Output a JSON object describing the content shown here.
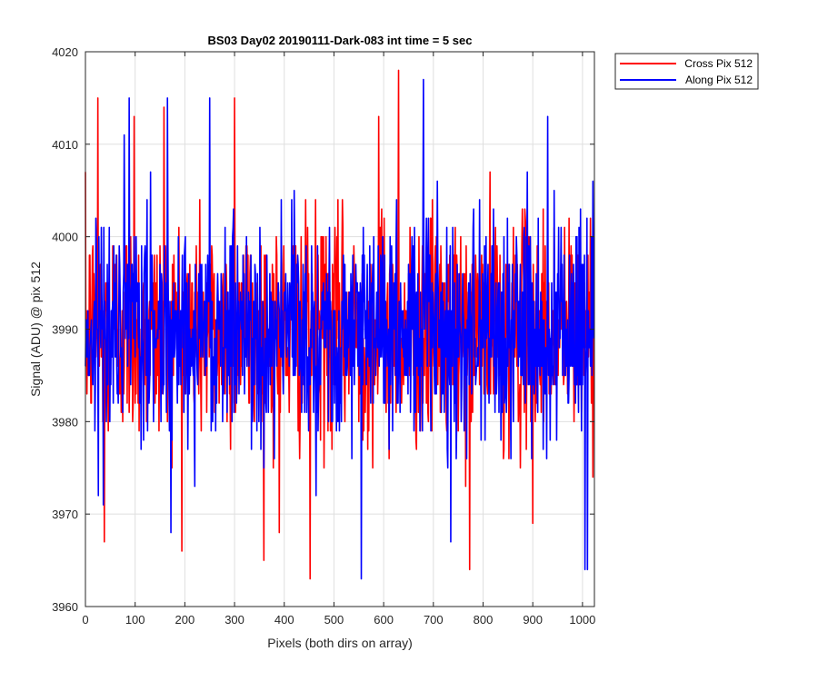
{
  "chart_data": {
    "type": "line",
    "title": "BS03 Day02 20190111-Dark-083 int time = 5 sec",
    "xlabel": "Pixels (both dirs on array)",
    "ylabel": "Signal (ADU) @ pix 512",
    "xlim": [
      0,
      1024
    ],
    "ylim": [
      3960,
      4020
    ],
    "xticks": [
      0,
      100,
      200,
      300,
      400,
      500,
      600,
      700,
      800,
      900,
      1000
    ],
    "yticks": [
      3960,
      3970,
      3980,
      3990,
      4000,
      4010,
      4020
    ],
    "grid": true,
    "legend_position": "outside-top-right",
    "series": [
      {
        "name": "Cross Pix 512",
        "color": "#ff0000",
        "noise_model": {
          "mean": 3990,
          "sigma": 6,
          "points": 1024
        },
        "extremes": [
          {
            "x": 25,
            "y": 4015
          },
          {
            "x": 38,
            "y": 3967
          },
          {
            "x": 98,
            "y": 4013
          },
          {
            "x": 158,
            "y": 4014
          },
          {
            "x": 300,
            "y": 4015
          },
          {
            "x": 390,
            "y": 3968
          },
          {
            "x": 452,
            "y": 3963
          },
          {
            "x": 590,
            "y": 4013
          },
          {
            "x": 630,
            "y": 4018
          },
          {
            "x": 773,
            "y": 3964
          },
          {
            "x": 900,
            "y": 3969
          }
        ]
      },
      {
        "name": "Along Pix 512",
        "color": "#0000ff",
        "noise_model": {
          "mean": 3990,
          "sigma": 6,
          "points": 1024
        },
        "extremes": [
          {
            "x": 88,
            "y": 4015
          },
          {
            "x": 165,
            "y": 4015
          },
          {
            "x": 250,
            "y": 4015
          },
          {
            "x": 555,
            "y": 3963
          },
          {
            "x": 680,
            "y": 4017
          },
          {
            "x": 735,
            "y": 3967
          },
          {
            "x": 930,
            "y": 4013
          },
          {
            "x": 1005,
            "y": 3964
          },
          {
            "x": 1010,
            "y": 3964
          }
        ]
      }
    ]
  }
}
